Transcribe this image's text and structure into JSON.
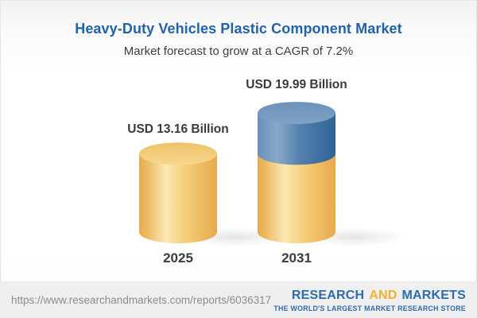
{
  "header": {
    "title": "Heavy-Duty Vehicles Plastic Component Market",
    "subtitle": "Market forecast to grow at a CAGR of 7.2%"
  },
  "chart_data": {
    "type": "bar",
    "style": "3d-cylinder",
    "title": "Heavy-Duty Vehicles Plastic Component Market",
    "subtitle": "Market forecast to grow at a CAGR of 7.2%",
    "unit": "USD Billion",
    "cagr_percent": 7.2,
    "categories": [
      "2025",
      "2031"
    ],
    "values": [
      13.16,
      19.99
    ],
    "value_labels": [
      "USD 13.16 Billion",
      "USD 19.99 Billion"
    ],
    "ylim": [
      0,
      20
    ],
    "grid": false,
    "legend": false,
    "bars": [
      {
        "category": "2025",
        "segments": [
          {
            "value": 13.16,
            "color": "base"
          }
        ]
      },
      {
        "category": "2031",
        "segments": [
          {
            "value": 13.16,
            "color": "base"
          },
          {
            "value": 6.83,
            "color": "growth"
          }
        ]
      }
    ],
    "colors": {
      "base": "#F3C86E",
      "growth": "#4A7CAB"
    }
  },
  "footer": {
    "url": "https://www.researchandmarkets.com/reports/6036317",
    "logo": {
      "word1": "RESEARCH",
      "word2": "AND",
      "word3": "MARKETS",
      "tagline": "THE WORLD'S LARGEST MARKET RESEARCH STORE",
      "colors": {
        "blue": "#2C6CAE",
        "gold": "#F0B12D"
      }
    }
  }
}
